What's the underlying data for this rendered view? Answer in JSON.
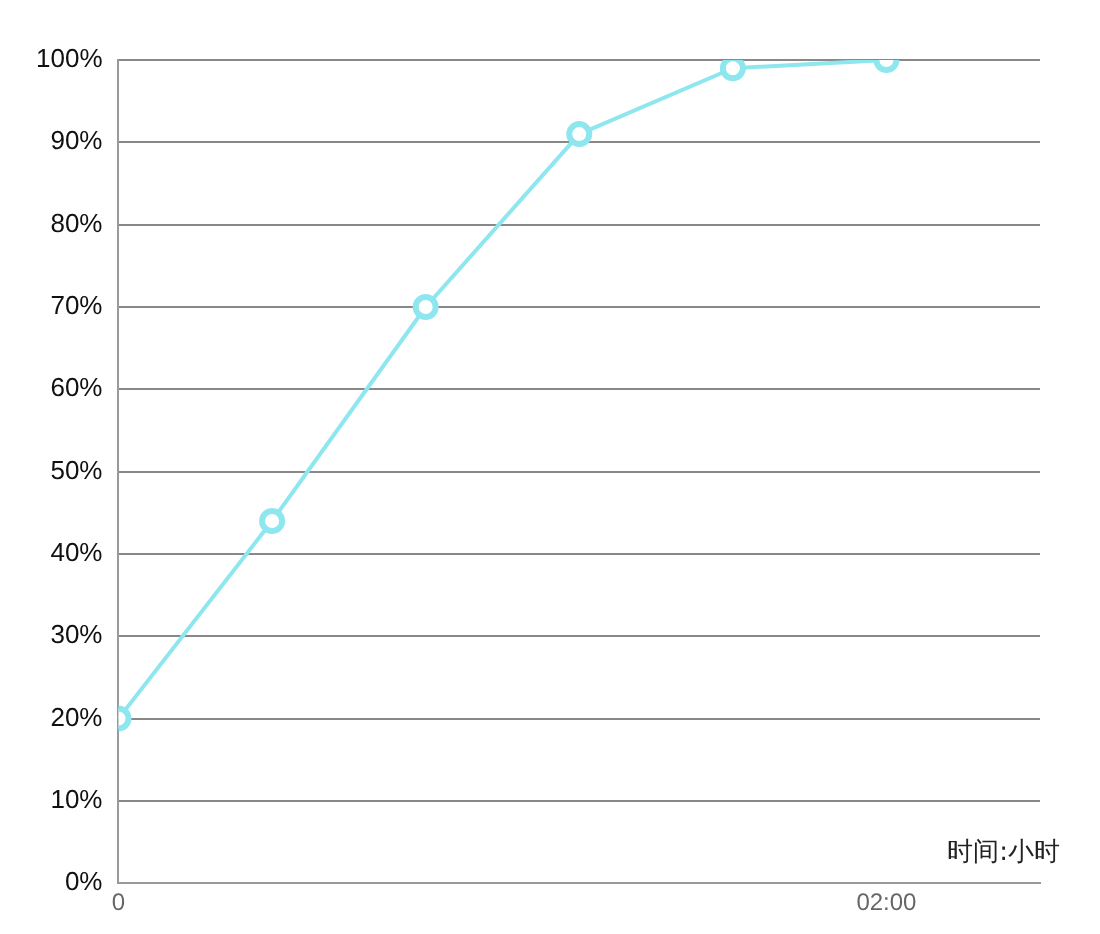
{
  "chart_data": {
    "type": "line",
    "x": [
      0,
      0.4,
      0.8,
      1.2,
      1.6,
      2
    ],
    "series": [
      {
        "color": "#8ee6ef",
        "values": [
          20,
          44,
          70,
          91,
          99,
          100
        ]
      }
    ],
    "xlim": [
      0,
      2.4
    ],
    "xticks": [
      {
        "value": 0,
        "label": "0"
      },
      {
        "value": 2,
        "label": "02:00"
      }
    ],
    "ylim": [
      0,
      100
    ],
    "yticks": [
      {
        "value": 0,
        "label": "0%"
      },
      {
        "value": 10,
        "label": "10%"
      },
      {
        "value": 20,
        "label": "20%"
      },
      {
        "value": 30,
        "label": "30%"
      },
      {
        "value": 40,
        "label": "40%"
      },
      {
        "value": 50,
        "label": "50%"
      },
      {
        "value": 60,
        "label": "60%"
      },
      {
        "value": 70,
        "label": "70%"
      },
      {
        "value": 80,
        "label": "80%"
      },
      {
        "value": 90,
        "label": "90%"
      },
      {
        "value": 100,
        "label": "100%"
      }
    ],
    "grid": "y",
    "marker": "circle",
    "line_style": "solid",
    "legend": false,
    "annotations": [
      "时间:小时"
    ]
  }
}
